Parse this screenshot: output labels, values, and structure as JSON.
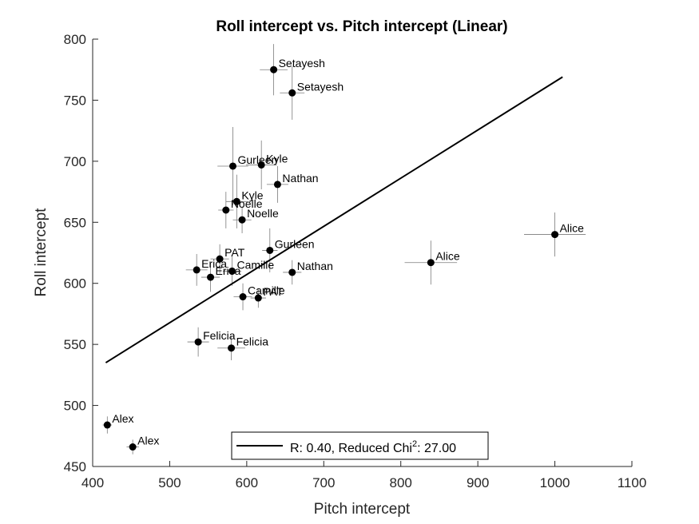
{
  "chart_data": {
    "type": "scatter",
    "title": "Roll intercept vs. Pitch intercept (Linear)",
    "xlabel": "Pitch intercept",
    "ylabel": "Roll intercept",
    "xlim": [
      400,
      1100
    ],
    "ylim": [
      450,
      800
    ],
    "xticks": [
      400,
      500,
      600,
      700,
      800,
      900,
      1000,
      1100
    ],
    "yticks": [
      450,
      500,
      550,
      600,
      650,
      700,
      750,
      800
    ],
    "grid": false,
    "points": [
      {
        "label": "Setayesh",
        "x": 635,
        "y": 775,
        "xerr": 18,
        "yerr": 21
      },
      {
        "label": "Setayesh",
        "x": 659,
        "y": 756,
        "xerr": 16,
        "yerr": 22
      },
      {
        "label": "Gurleen",
        "x": 582,
        "y": 696,
        "xerr": 20,
        "yerr": 32
      },
      {
        "label": "Kyle",
        "x": 619,
        "y": 697,
        "xerr": 20,
        "yerr": 20
      },
      {
        "label": "Nathan",
        "x": 640,
        "y": 681,
        "xerr": 14,
        "yerr": 15
      },
      {
        "label": "Kyle",
        "x": 587,
        "y": 667,
        "xerr": 14,
        "yerr": 22
      },
      {
        "label": "Noelle",
        "x": 573,
        "y": 660,
        "xerr": 10,
        "yerr": 15
      },
      {
        "label": "Noelle",
        "x": 594,
        "y": 652,
        "xerr": 12,
        "yerr": 11
      },
      {
        "label": "Alice",
        "x": 1000,
        "y": 640,
        "xerr": 40,
        "yerr": 18
      },
      {
        "label": "Gurleen",
        "x": 630,
        "y": 627,
        "xerr": 10,
        "yerr": 18
      },
      {
        "label": "PAT",
        "x": 565,
        "y": 620,
        "xerr": 12,
        "yerr": 12
      },
      {
        "label": "Alice",
        "x": 839,
        "y": 617,
        "xerr": 34,
        "yerr": 18
      },
      {
        "label": "Erica",
        "x": 535,
        "y": 611,
        "xerr": 14,
        "yerr": 13
      },
      {
        "label": "Camille",
        "x": 581,
        "y": 610,
        "xerr": 12,
        "yerr": 12
      },
      {
        "label": "Nathan",
        "x": 659,
        "y": 609,
        "xerr": 12,
        "yerr": 10
      },
      {
        "label": "Erica",
        "x": 553,
        "y": 605,
        "xerr": 12,
        "yerr": 12
      },
      {
        "label": "Camille",
        "x": 595,
        "y": 589,
        "xerr": 12,
        "yerr": 11
      },
      {
        "label": "PAT",
        "x": 615,
        "y": 588,
        "xerr": 10,
        "yerr": 8
      },
      {
        "label": "Felicia",
        "x": 537,
        "y": 552,
        "xerr": 14,
        "yerr": 12
      },
      {
        "label": "Felicia",
        "x": 580,
        "y": 547,
        "xerr": 18,
        "yerr": 10
      },
      {
        "label": "Alex",
        "x": 419,
        "y": 484,
        "xerr": 6,
        "yerr": 7
      },
      {
        "label": "Alex",
        "x": 452,
        "y": 466,
        "xerr": 8,
        "yerr": 6
      }
    ],
    "fit_line": {
      "x": [
        417,
        1010
      ],
      "y": [
        535,
        769
      ]
    },
    "legend": {
      "text": "R: 0.40, Reduced Chi",
      "superscript": "2",
      "suffix": ": 27.00",
      "location": "bottom-center"
    }
  }
}
